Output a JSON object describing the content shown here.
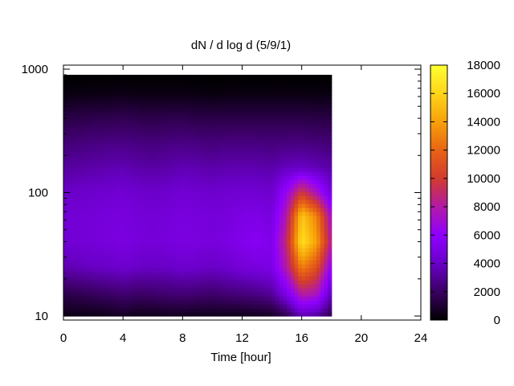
{
  "chart_data": {
    "type": "heatmap",
    "title": "dN / d log d (5/9/1)",
    "xlabel": "Time [hour]",
    "ylabel": "",
    "x_range": [
      0,
      24
    ],
    "x_ticks": [
      0,
      4,
      8,
      12,
      16,
      20,
      24
    ],
    "x_tick_labels": [
      "0",
      "4",
      "8",
      "12",
      "16",
      "20",
      "24"
    ],
    "y_scale": "log",
    "y_range": [
      10,
      1000
    ],
    "y_ticks": [
      10,
      100,
      1000
    ],
    "y_tick_labels": [
      "10",
      "100",
      "1000"
    ],
    "data_x_extent": [
      0,
      18
    ],
    "data_y_extent": [
      10,
      900
    ],
    "colorbar": {
      "range": [
        0,
        18000
      ],
      "ticks": [
        0,
        2000,
        4000,
        6000,
        8000,
        10000,
        12000,
        14000,
        16000,
        18000
      ],
      "tick_labels": [
        "0",
        "2000",
        "4000",
        "6000",
        "8000",
        "10000",
        "12000",
        "14000",
        "16000",
        "18000"
      ],
      "palette": [
        "#000000",
        "#3a0063",
        "#6a00c8",
        "#8f00ff",
        "#b21aa6",
        "#d23b2e",
        "#e86414",
        "#f6a10a",
        "#ffd51a",
        "#ffff30"
      ]
    },
    "grid": false,
    "legend": "none",
    "times": [
      0,
      1,
      2,
      3,
      4,
      5,
      6,
      7,
      8,
      9,
      10,
      11,
      12,
      13,
      14,
      15,
      16,
      17,
      18
    ],
    "diameters": [
      10,
      15,
      25,
      40,
      65,
      100,
      160,
      250,
      400,
      650,
      900
    ],
    "values": [
      [
        400,
        400,
        400,
        500,
        700,
        500,
        500,
        600,
        600,
        500,
        500,
        500,
        500,
        600,
        700,
        1500,
        3500,
        3000,
        1500
      ],
      [
        1500,
        1600,
        1800,
        2000,
        2200,
        2000,
        2100,
        2200,
        2300,
        2200,
        2100,
        2300,
        2400,
        2600,
        3000,
        5000,
        8000,
        7500,
        3500
      ],
      [
        3500,
        3700,
        3900,
        4000,
        4200,
        4000,
        3900,
        4000,
        4200,
        4100,
        4000,
        4200,
        4600,
        4800,
        5000,
        8000,
        13000,
        11000,
        6000
      ],
      [
        4300,
        4500,
        4600,
        4700,
        4900,
        4700,
        4600,
        4700,
        4900,
        4800,
        4700,
        4900,
        5300,
        5600,
        5200,
        9000,
        16500,
        14000,
        8000
      ],
      [
        4400,
        4500,
        4600,
        4700,
        4800,
        4600,
        4500,
        4600,
        4800,
        4700,
        4600,
        4700,
        5000,
        5100,
        4800,
        8000,
        15500,
        13000,
        7000
      ],
      [
        4000,
        4100,
        4200,
        4300,
        4400,
        4200,
        4100,
        4200,
        4400,
        4300,
        4200,
        4300,
        4400,
        4400,
        4200,
        6500,
        10000,
        7500,
        4500
      ],
      [
        3200,
        3300,
        3400,
        3500,
        3600,
        3400,
        3300,
        3400,
        3600,
        3500,
        3400,
        3500,
        3500,
        3500,
        3400,
        3800,
        4000,
        3700,
        3300
      ],
      [
        2400,
        2500,
        2600,
        2700,
        2700,
        2600,
        2500,
        2600,
        2700,
        2600,
        2500,
        2600,
        2600,
        2600,
        2500,
        2600,
        2600,
        2500,
        2400
      ],
      [
        1400,
        1500,
        1600,
        1600,
        1700,
        1600,
        1500,
        1600,
        1600,
        1500,
        1500,
        1500,
        1500,
        1500,
        1500,
        1500,
        1500,
        1400,
        1400
      ],
      [
        300,
        300,
        350,
        350,
        400,
        350,
        350,
        350,
        350,
        300,
        250,
        300,
        300,
        300,
        300,
        300,
        300,
        300,
        300
      ],
      [
        0,
        0,
        0,
        0,
        0,
        0,
        0,
        0,
        0,
        0,
        0,
        0,
        0,
        0,
        0,
        0,
        0,
        0,
        0
      ]
    ]
  }
}
